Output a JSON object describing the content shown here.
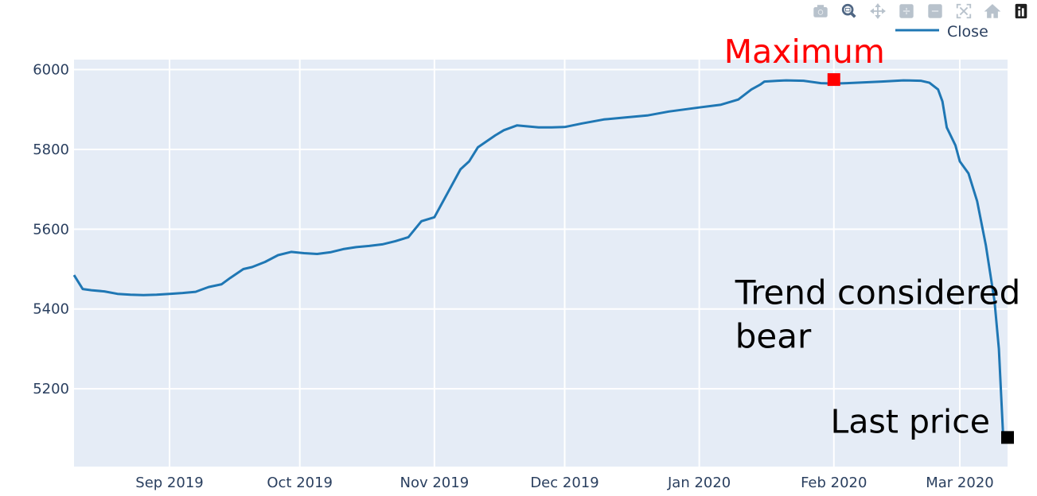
{
  "modebar": {
    "buttons": [
      {
        "name": "camera-icon",
        "title": "Download plot as a png"
      },
      {
        "name": "zoom-icon",
        "title": "Zoom"
      },
      {
        "name": "pan-icon",
        "title": "Pan"
      },
      {
        "name": "zoom-in-icon",
        "title": "Zoom in"
      },
      {
        "name": "zoom-out-icon",
        "title": "Zoom out"
      },
      {
        "name": "autoscale-icon",
        "title": "Autoscale"
      },
      {
        "name": "home-icon",
        "title": "Reset axes"
      },
      {
        "name": "plotly-logo-icon",
        "title": "Produced with Plotly"
      }
    ]
  },
  "colors": {
    "plot_bg": "#e5ecf6",
    "grid": "#ffffff",
    "line": "#1f77b4",
    "maximum": "#ff0000",
    "last_price": "#000000",
    "axis_text": "#2a3f5f",
    "modebar_icon": "#b8c2cc",
    "modebar_active": "#506784"
  },
  "chart_data": {
    "type": "line",
    "title": "",
    "xlabel": "",
    "ylabel": "",
    "ylim": [
      5005,
      6025
    ],
    "xlim": [
      "2019-08-10",
      "2020-03-12"
    ],
    "yticks": [
      5200,
      5400,
      5600,
      5800,
      6000
    ],
    "xticks": [
      {
        "date": "2019-09-01",
        "label": "Sep 2019"
      },
      {
        "date": "2019-10-01",
        "label": "Oct 2019"
      },
      {
        "date": "2019-11-01",
        "label": "Nov 2019"
      },
      {
        "date": "2019-12-01",
        "label": "Dec 2019"
      },
      {
        "date": "2020-01-01",
        "label": "Jan 2020"
      },
      {
        "date": "2020-02-01",
        "label": "Feb 2020"
      },
      {
        "date": "2020-03-01",
        "label": "Mar 2020"
      }
    ],
    "grid": true,
    "legend_position": "top-right",
    "series": [
      {
        "name": "Close",
        "x": [
          "2019-08-10",
          "2019-08-12",
          "2019-08-14",
          "2019-08-17",
          "2019-08-20",
          "2019-08-23",
          "2019-08-26",
          "2019-08-29",
          "2019-09-01",
          "2019-09-04",
          "2019-09-07",
          "2019-09-10",
          "2019-09-13",
          "2019-09-15",
          "2019-09-18",
          "2019-09-20",
          "2019-09-23",
          "2019-09-26",
          "2019-09-29",
          "2019-10-02",
          "2019-10-05",
          "2019-10-08",
          "2019-10-11",
          "2019-10-14",
          "2019-10-17",
          "2019-10-20",
          "2019-10-23",
          "2019-10-26",
          "2019-10-29",
          "2019-11-01",
          "2019-11-04",
          "2019-11-07",
          "2019-11-09",
          "2019-11-11",
          "2019-11-13",
          "2019-11-15",
          "2019-11-17",
          "2019-11-20",
          "2019-11-22",
          "2019-11-25",
          "2019-11-28",
          "2019-12-01",
          "2019-12-05",
          "2019-12-10",
          "2019-12-15",
          "2019-12-20",
          "2019-12-25",
          "2020-01-01",
          "2020-01-06",
          "2020-01-10",
          "2020-01-13",
          "2020-01-15",
          "2020-01-16",
          "2020-01-19",
          "2020-01-21",
          "2020-01-25",
          "2020-01-29",
          "2020-02-01",
          "2020-02-04",
          "2020-02-08",
          "2020-02-12",
          "2020-02-17",
          "2020-02-21",
          "2020-02-23",
          "2020-02-25",
          "2020-02-26",
          "2020-02-27",
          "2020-02-29",
          "2020-03-01",
          "2020-03-03",
          "2020-03-05",
          "2020-03-07",
          "2020-03-09",
          "2020-03-10",
          "2020-03-11",
          "2020-03-12"
        ],
        "y": [
          5485,
          5450,
          5447,
          5444,
          5438,
          5436,
          5435,
          5436,
          5438,
          5440,
          5443,
          5455,
          5462,
          5478,
          5500,
          5505,
          5518,
          5535,
          5543,
          5540,
          5538,
          5542,
          5550,
          5555,
          5558,
          5562,
          5570,
          5580,
          5620,
          5630,
          5690,
          5750,
          5770,
          5805,
          5820,
          5835,
          5848,
          5860,
          5858,
          5855,
          5855,
          5856,
          5865,
          5875,
          5880,
          5885,
          5895,
          5905,
          5912,
          5925,
          5950,
          5962,
          5970,
          5972,
          5973,
          5972,
          5966,
          5965,
          5966,
          5968,
          5970,
          5973,
          5972,
          5967,
          5950,
          5920,
          5855,
          5810,
          5770,
          5740,
          5670,
          5560,
          5420,
          5300,
          5080,
          5078
        ]
      }
    ],
    "annotations": [
      {
        "text": "Maximum",
        "x": "2020-02-01",
        "y": 5975,
        "color": "#ff0000"
      },
      {
        "text": "Trend considered\nbear",
        "x": "2020-01-10",
        "y": 5460,
        "color": "#000000"
      },
      {
        "text": "Last price",
        "x": "2020-03-12",
        "y": 5078,
        "color": "#000000"
      }
    ]
  }
}
